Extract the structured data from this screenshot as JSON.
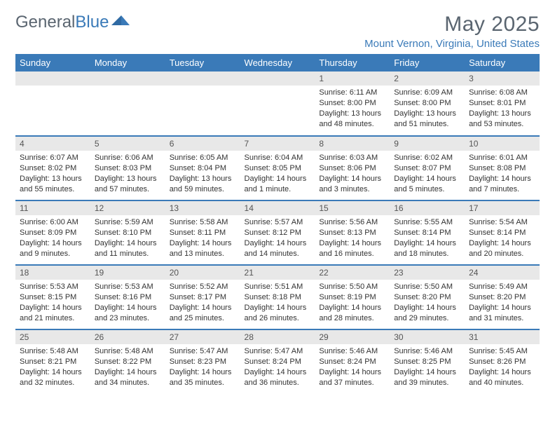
{
  "brand": {
    "name_a": "General",
    "name_b": "Blue"
  },
  "title": "May 2025",
  "location": "Mount Vernon, Virginia, United States",
  "colors": {
    "header_bg": "#3a7ab8",
    "header_text": "#ffffff",
    "daynum_bg": "#e8e8e8",
    "body_text": "#333333",
    "title_text": "#5a6570"
  },
  "daynames": [
    "Sunday",
    "Monday",
    "Tuesday",
    "Wednesday",
    "Thursday",
    "Friday",
    "Saturday"
  ],
  "weeks": [
    [
      {
        "n": "",
        "sr": "",
        "ss": "",
        "d1": "",
        "d2": ""
      },
      {
        "n": "",
        "sr": "",
        "ss": "",
        "d1": "",
        "d2": ""
      },
      {
        "n": "",
        "sr": "",
        "ss": "",
        "d1": "",
        "d2": ""
      },
      {
        "n": "",
        "sr": "",
        "ss": "",
        "d1": "",
        "d2": ""
      },
      {
        "n": "1",
        "sr": "Sunrise: 6:11 AM",
        "ss": "Sunset: 8:00 PM",
        "d1": "Daylight: 13 hours",
        "d2": "and 48 minutes."
      },
      {
        "n": "2",
        "sr": "Sunrise: 6:09 AM",
        "ss": "Sunset: 8:00 PM",
        "d1": "Daylight: 13 hours",
        "d2": "and 51 minutes."
      },
      {
        "n": "3",
        "sr": "Sunrise: 6:08 AM",
        "ss": "Sunset: 8:01 PM",
        "d1": "Daylight: 13 hours",
        "d2": "and 53 minutes."
      }
    ],
    [
      {
        "n": "4",
        "sr": "Sunrise: 6:07 AM",
        "ss": "Sunset: 8:02 PM",
        "d1": "Daylight: 13 hours",
        "d2": "and 55 minutes."
      },
      {
        "n": "5",
        "sr": "Sunrise: 6:06 AM",
        "ss": "Sunset: 8:03 PM",
        "d1": "Daylight: 13 hours",
        "d2": "and 57 minutes."
      },
      {
        "n": "6",
        "sr": "Sunrise: 6:05 AM",
        "ss": "Sunset: 8:04 PM",
        "d1": "Daylight: 13 hours",
        "d2": "and 59 minutes."
      },
      {
        "n": "7",
        "sr": "Sunrise: 6:04 AM",
        "ss": "Sunset: 8:05 PM",
        "d1": "Daylight: 14 hours",
        "d2": "and 1 minute."
      },
      {
        "n": "8",
        "sr": "Sunrise: 6:03 AM",
        "ss": "Sunset: 8:06 PM",
        "d1": "Daylight: 14 hours",
        "d2": "and 3 minutes."
      },
      {
        "n": "9",
        "sr": "Sunrise: 6:02 AM",
        "ss": "Sunset: 8:07 PM",
        "d1": "Daylight: 14 hours",
        "d2": "and 5 minutes."
      },
      {
        "n": "10",
        "sr": "Sunrise: 6:01 AM",
        "ss": "Sunset: 8:08 PM",
        "d1": "Daylight: 14 hours",
        "d2": "and 7 minutes."
      }
    ],
    [
      {
        "n": "11",
        "sr": "Sunrise: 6:00 AM",
        "ss": "Sunset: 8:09 PM",
        "d1": "Daylight: 14 hours",
        "d2": "and 9 minutes."
      },
      {
        "n": "12",
        "sr": "Sunrise: 5:59 AM",
        "ss": "Sunset: 8:10 PM",
        "d1": "Daylight: 14 hours",
        "d2": "and 11 minutes."
      },
      {
        "n": "13",
        "sr": "Sunrise: 5:58 AM",
        "ss": "Sunset: 8:11 PM",
        "d1": "Daylight: 14 hours",
        "d2": "and 13 minutes."
      },
      {
        "n": "14",
        "sr": "Sunrise: 5:57 AM",
        "ss": "Sunset: 8:12 PM",
        "d1": "Daylight: 14 hours",
        "d2": "and 14 minutes."
      },
      {
        "n": "15",
        "sr": "Sunrise: 5:56 AM",
        "ss": "Sunset: 8:13 PM",
        "d1": "Daylight: 14 hours",
        "d2": "and 16 minutes."
      },
      {
        "n": "16",
        "sr": "Sunrise: 5:55 AM",
        "ss": "Sunset: 8:14 PM",
        "d1": "Daylight: 14 hours",
        "d2": "and 18 minutes."
      },
      {
        "n": "17",
        "sr": "Sunrise: 5:54 AM",
        "ss": "Sunset: 8:14 PM",
        "d1": "Daylight: 14 hours",
        "d2": "and 20 minutes."
      }
    ],
    [
      {
        "n": "18",
        "sr": "Sunrise: 5:53 AM",
        "ss": "Sunset: 8:15 PM",
        "d1": "Daylight: 14 hours",
        "d2": "and 21 minutes."
      },
      {
        "n": "19",
        "sr": "Sunrise: 5:53 AM",
        "ss": "Sunset: 8:16 PM",
        "d1": "Daylight: 14 hours",
        "d2": "and 23 minutes."
      },
      {
        "n": "20",
        "sr": "Sunrise: 5:52 AM",
        "ss": "Sunset: 8:17 PM",
        "d1": "Daylight: 14 hours",
        "d2": "and 25 minutes."
      },
      {
        "n": "21",
        "sr": "Sunrise: 5:51 AM",
        "ss": "Sunset: 8:18 PM",
        "d1": "Daylight: 14 hours",
        "d2": "and 26 minutes."
      },
      {
        "n": "22",
        "sr": "Sunrise: 5:50 AM",
        "ss": "Sunset: 8:19 PM",
        "d1": "Daylight: 14 hours",
        "d2": "and 28 minutes."
      },
      {
        "n": "23",
        "sr": "Sunrise: 5:50 AM",
        "ss": "Sunset: 8:20 PM",
        "d1": "Daylight: 14 hours",
        "d2": "and 29 minutes."
      },
      {
        "n": "24",
        "sr": "Sunrise: 5:49 AM",
        "ss": "Sunset: 8:20 PM",
        "d1": "Daylight: 14 hours",
        "d2": "and 31 minutes."
      }
    ],
    [
      {
        "n": "25",
        "sr": "Sunrise: 5:48 AM",
        "ss": "Sunset: 8:21 PM",
        "d1": "Daylight: 14 hours",
        "d2": "and 32 minutes."
      },
      {
        "n": "26",
        "sr": "Sunrise: 5:48 AM",
        "ss": "Sunset: 8:22 PM",
        "d1": "Daylight: 14 hours",
        "d2": "and 34 minutes."
      },
      {
        "n": "27",
        "sr": "Sunrise: 5:47 AM",
        "ss": "Sunset: 8:23 PM",
        "d1": "Daylight: 14 hours",
        "d2": "and 35 minutes."
      },
      {
        "n": "28",
        "sr": "Sunrise: 5:47 AM",
        "ss": "Sunset: 8:24 PM",
        "d1": "Daylight: 14 hours",
        "d2": "and 36 minutes."
      },
      {
        "n": "29",
        "sr": "Sunrise: 5:46 AM",
        "ss": "Sunset: 8:24 PM",
        "d1": "Daylight: 14 hours",
        "d2": "and 37 minutes."
      },
      {
        "n": "30",
        "sr": "Sunrise: 5:46 AM",
        "ss": "Sunset: 8:25 PM",
        "d1": "Daylight: 14 hours",
        "d2": "and 39 minutes."
      },
      {
        "n": "31",
        "sr": "Sunrise: 5:45 AM",
        "ss": "Sunset: 8:26 PM",
        "d1": "Daylight: 14 hours",
        "d2": "and 40 minutes."
      }
    ]
  ]
}
